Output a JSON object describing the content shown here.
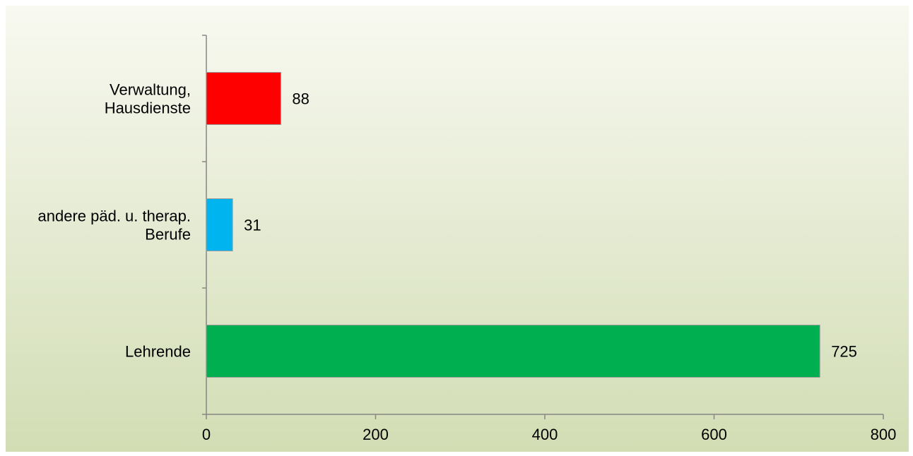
{
  "chart_data": {
    "type": "bar",
    "orientation": "horizontal",
    "categories": [
      "Verwaltung, Hausdienste",
      "andere päd. u. therap. Berufe",
      "Lehrende"
    ],
    "category_label_lines": [
      [
        "Verwaltung,",
        "Hausdienste"
      ],
      [
        "andere päd. u. therap.",
        "Berufe"
      ],
      [
        "Lehrende"
      ]
    ],
    "values": [
      88,
      31,
      725
    ],
    "bar_colors": [
      "#ff0000",
      "#00b4f0",
      "#00b050"
    ],
    "xlim": [
      0,
      800
    ],
    "xticks": [
      0,
      200,
      400,
      600,
      800
    ],
    "xtick_labels": [
      "0",
      "200",
      "400",
      "600",
      "800"
    ],
    "data_labels": [
      "88",
      "31",
      "725"
    ],
    "grid": false,
    "legend": "none",
    "title": "",
    "xlabel": "",
    "ylabel": ""
  },
  "style": {
    "background_gradient_top": "#f8f9f1",
    "background_gradient_bottom": "#d2ddb4",
    "axis_color": "#868686",
    "bar_border_color": "#9a9a9a"
  }
}
